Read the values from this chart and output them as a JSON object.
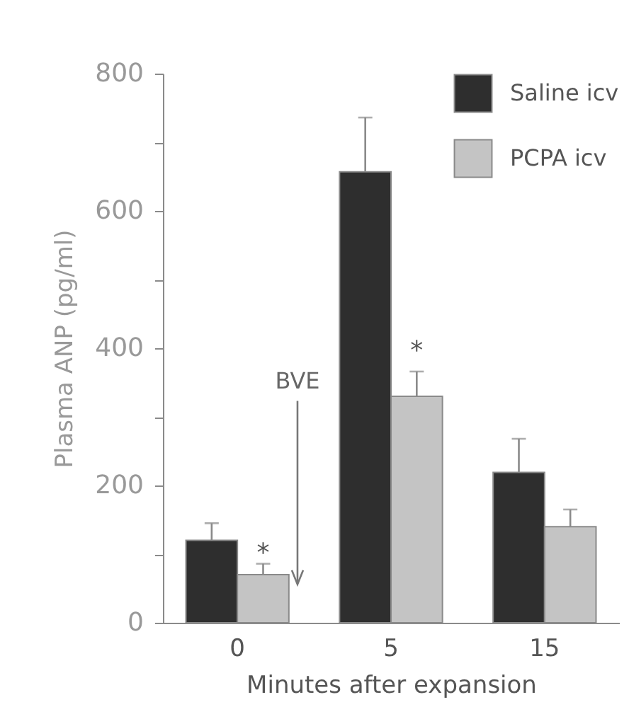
{
  "chart_data": {
    "type": "bar",
    "ylabel": "Plasma ANP (pg/ml)",
    "xlabel": "Minutes after expansion",
    "categories": [
      "0",
      "5",
      "15"
    ],
    "series": [
      {
        "name": "Saline icv",
        "color": "#2e2e2e",
        "values": [
          120,
          657,
          219
        ],
        "errors": [
          [
            120,
            145
          ],
          [
            657,
            736
          ],
          [
            219,
            268
          ]
        ]
      },
      {
        "name": "PCPA icv",
        "color": "#c4c4c4",
        "values": [
          70,
          330,
          140
        ],
        "errors": [
          [
            70,
            86
          ],
          [
            330,
            366
          ],
          [
            140,
            165
          ]
        ]
      }
    ],
    "ylim": [
      0,
      800
    ],
    "yticks": [
      0,
      {
        "value": 100,
        "label": null
      },
      200,
      {
        "value": 300,
        "label": null
      },
      400,
      {
        "value": 500,
        "label": null
      },
      600,
      {
        "value": 700,
        "label": null
      },
      800
    ],
    "legend": "top right",
    "grid": false,
    "annotations": [
      "BVE",
      {
        "text": "*",
        "x": "0",
        "y": 100
      },
      {
        "text": "*",
        "x": "5",
        "y": 395
      }
    ]
  }
}
